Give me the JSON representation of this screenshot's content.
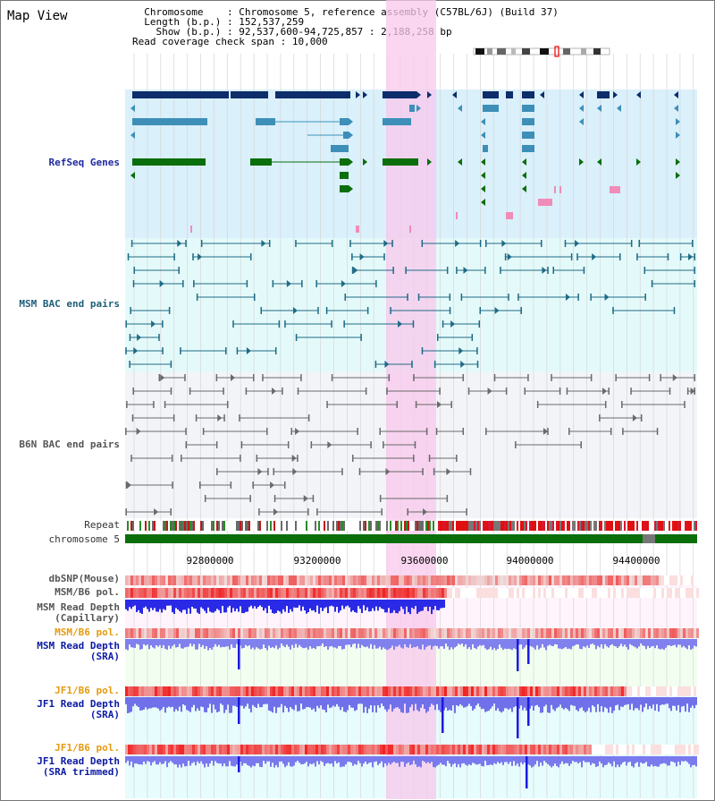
{
  "title": "Map View",
  "info": {
    "chromosome_label": "Chromosome",
    "chromosome_value": "Chromosome 5, reference assembly (C57BL/6J) (Build 37)",
    "length_label": "Length (b.p.)",
    "length_value": "152,537,259",
    "show_label": "Show (b.p.)",
    "show_value": "92,537,600-94,725,857 : 2,188,258 bp",
    "coverage_label": "Read coverage check span",
    "coverage_value": "10,000"
  },
  "tracks": {
    "refseq": "RefSeq Genes",
    "msm_bac": "MSM BAC end pairs",
    "b6n_bac": "B6N BAC end pairs",
    "repeat": "Repeat",
    "chromosome": "chromosome 5",
    "dbsnp": "dbSNP(Mouse)",
    "msm_pol": "MSM/B6 pol.",
    "msm_depth_cap_1": "MSM Read Depth",
    "msm_depth_cap_2": "(Capillary)",
    "msm_pol2": "MSM/B6 pol.",
    "msm_depth_sra_1": "MSM Read Depth",
    "msm_depth_sra_2": "(SRA)",
    "jf1_pol": "JF1/B6 pol.",
    "jf1_depth_sra_1": "JF1 Read Depth",
    "jf1_depth_sra_2": "(SRA)",
    "jf1_pol2": "JF1/B6 pol.",
    "jf1_depth_trim_1": "JF1 Read Depth",
    "jf1_depth_trim_2": "(SRA trimmed)"
  },
  "axis_ticks": [
    "92800000",
    "93200000",
    "93600000",
    "94000000",
    "94400000"
  ],
  "colors": {
    "refseq_bg": "#daf0fb",
    "msm_bac_bg": "#e4fafa",
    "b6n_bac_bg": "#f2f4f8",
    "highlight": "#f8c8ec",
    "navy_gene": "#0d2d6b",
    "light_gene": "#3d8fb8",
    "green_gene": "#0a6e0a",
    "pink_gene": "#f08cb8"
  }
}
